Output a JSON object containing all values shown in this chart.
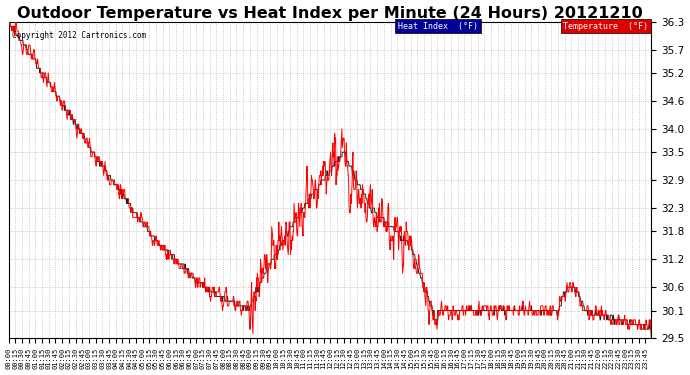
{
  "title": "Outdoor Temperature vs Heat Index per Minute (24 Hours) 20121210",
  "copyright": "Copyright 2012 Cartronics.com",
  "ylim": [
    29.5,
    36.3
  ],
  "yticks": [
    29.5,
    30.1,
    30.6,
    31.2,
    31.8,
    32.3,
    32.9,
    33.5,
    34.0,
    34.6,
    35.2,
    35.7,
    36.3
  ],
  "temp_color": "#FF0000",
  "heat_color": "#222222",
  "legend_heat_bg": "#000099",
  "legend_temp_bg": "#DD0000",
  "background_color": "#FFFFFF",
  "grid_color": "#BBBBBB",
  "title_fontsize": 11.5,
  "figsize": [
    6.9,
    3.75
  ],
  "dpi": 100,
  "n_minutes": 1440
}
